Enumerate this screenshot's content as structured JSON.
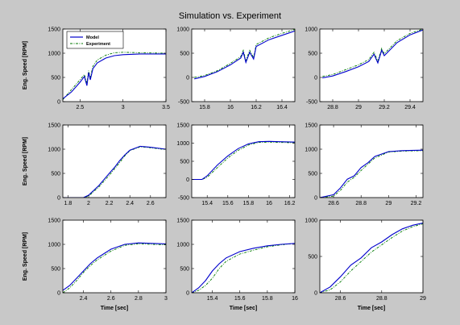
{
  "chart_data": {
    "type": "line",
    "title": "Simulation vs. Experiment",
    "xlabel": "Time [sec]",
    "ylabel": "Eng. Speed [RPM]",
    "legend": {
      "placement": "top-left",
      "entries": [
        "Model",
        "Experiment"
      ]
    },
    "colors": {
      "Model": "#0000cc",
      "Experiment": "#007a00",
      "axes_bg": "#ffffff",
      "figure_bg": "#c8c8c8"
    },
    "grid": false,
    "panels": [
      {
        "xlim": [
          2.3,
          3.5
        ],
        "ylim": [
          0,
          1500
        ],
        "xticks": [
          2.5,
          3,
          3.5
        ],
        "xtick_labels": [
          "2.5",
          "3",
          "3.5"
        ],
        "yticks": [
          0,
          500,
          1000,
          1500
        ],
        "ytick_labels": [
          "0",
          "500",
          "1000",
          "1500"
        ],
        "series": [
          {
            "name": "Model",
            "x": [
              2.3,
              2.4,
              2.5,
              2.55,
              2.58,
              2.6,
              2.62,
              2.65,
              2.7,
              2.8,
              2.9,
              3.0,
              3.2,
              3.5
            ],
            "y": [
              60,
              200,
              400,
              520,
              330,
              600,
              450,
              680,
              800,
              900,
              950,
              970,
              985,
              985
            ]
          },
          {
            "name": "Experiment",
            "x": [
              2.3,
              2.4,
              2.5,
              2.55,
              2.58,
              2.6,
              2.62,
              2.65,
              2.7,
              2.8,
              2.9,
              3.0,
              3.2,
              3.5
            ],
            "y": [
              40,
              250,
              450,
              560,
              380,
              640,
              490,
              730,
              860,
              960,
              1010,
              1020,
              1010,
              1000
            ]
          }
        ]
      },
      {
        "xlim": [
          15.7,
          16.5
        ],
        "ylim": [
          -500,
          1000
        ],
        "xticks": [
          15.8,
          16,
          16.2,
          16.4
        ],
        "xtick_labels": [
          "15.8",
          "16",
          "16.2",
          "16.4"
        ],
        "yticks": [
          -500,
          0,
          500,
          1000
        ],
        "ytick_labels": [
          "-500",
          "0",
          "500",
          "1000"
        ],
        "series": [
          {
            "name": "Model",
            "x": [
              15.72,
              15.8,
              15.9,
              16.0,
              16.08,
              16.1,
              16.12,
              16.15,
              16.18,
              16.2,
              16.3,
              16.4,
              16.5
            ],
            "y": [
              -30,
              20,
              120,
              260,
              400,
              520,
              310,
              520,
              380,
              640,
              780,
              870,
              960
            ]
          },
          {
            "name": "Experiment",
            "x": [
              15.72,
              15.8,
              15.9,
              16.0,
              16.08,
              16.1,
              16.12,
              16.15,
              16.18,
              16.2,
              16.3,
              16.4,
              16.5
            ],
            "y": [
              0,
              40,
              140,
              290,
              430,
              560,
              350,
              560,
              410,
              680,
              820,
              910,
              990
            ]
          }
        ]
      },
      {
        "xlim": [
          28.7,
          29.5
        ],
        "ylim": [
          -500,
          1000
        ],
        "xticks": [
          28.8,
          29,
          29.2,
          29.4
        ],
        "xtick_labels": [
          "28.8",
          "29",
          "29.2",
          "29.4"
        ],
        "yticks": [
          -500,
          0,
          500,
          1000
        ],
        "ytick_labels": [
          "-500",
          "0",
          "500",
          "1000"
        ],
        "series": [
          {
            "name": "Model",
            "x": [
              28.72,
              28.8,
              28.9,
              29.0,
              29.08,
              29.12,
              29.15,
              29.18,
              29.2,
              29.3,
              29.4,
              29.5
            ],
            "y": [
              -10,
              30,
              120,
              220,
              330,
              480,
              300,
              560,
              450,
              720,
              880,
              980
            ]
          },
          {
            "name": "Experiment",
            "x": [
              28.72,
              28.8,
              28.9,
              29.0,
              29.08,
              29.12,
              29.15,
              29.18,
              29.2,
              29.3,
              29.4,
              29.5
            ],
            "y": [
              20,
              60,
              160,
              260,
              370,
              520,
              340,
              600,
              490,
              760,
              910,
              1000
            ]
          }
        ]
      },
      {
        "xlim": [
          1.75,
          2.75
        ],
        "ylim": [
          0,
          1500
        ],
        "xticks": [
          1.8,
          2,
          2.2,
          2.4,
          2.6
        ],
        "xtick_labels": [
          "1.8",
          "2",
          "2.2",
          "2.4",
          "2.6"
        ],
        "yticks": [
          0,
          500,
          1000,
          1500
        ],
        "ytick_labels": [
          "0",
          "500",
          "1000",
          "1500"
        ],
        "series": [
          {
            "name": "Model",
            "x": [
              1.75,
              1.95,
              2.0,
              2.1,
              2.2,
              2.25,
              2.3,
              2.35,
              2.4,
              2.5,
              2.6,
              2.75
            ],
            "y": [
              0,
              0,
              50,
              250,
              500,
              620,
              760,
              880,
              980,
              1060,
              1040,
              1000
            ]
          },
          {
            "name": "Experiment",
            "x": [
              1.75,
              1.95,
              2.0,
              2.1,
              2.2,
              2.25,
              2.3,
              2.35,
              2.4,
              2.5,
              2.6,
              2.75
            ],
            "y": [
              0,
              0,
              30,
              220,
              460,
              590,
              720,
              860,
              970,
              1050,
              1030,
              990
            ]
          }
        ]
      },
      {
        "xlim": [
          15.25,
          16.25
        ],
        "ylim": [
          -500,
          1500
        ],
        "xticks": [
          15.4,
          15.6,
          15.8,
          16,
          16.2
        ],
        "xtick_labels": [
          "15.4",
          "15.6",
          "15.8",
          "16",
          "16.2"
        ],
        "yticks": [
          -500,
          0,
          500,
          1000,
          1500
        ],
        "ytick_labels": [
          "-500",
          "0",
          "500",
          "1000",
          "1500"
        ],
        "series": [
          {
            "name": "Model",
            "x": [
              15.25,
              15.35,
              15.4,
              15.5,
              15.6,
              15.7,
              15.8,
              15.9,
              16.0,
              16.1,
              16.25
            ],
            "y": [
              0,
              0,
              100,
              400,
              650,
              850,
              980,
              1040,
              1050,
              1040,
              1030
            ]
          },
          {
            "name": "Experiment",
            "x": [
              15.25,
              15.35,
              15.4,
              15.5,
              15.6,
              15.7,
              15.8,
              15.9,
              16.0,
              16.1,
              16.25
            ],
            "y": [
              0,
              0,
              60,
              330,
              590,
              800,
              950,
              1020,
              1030,
              1020,
              1010
            ]
          }
        ]
      },
      {
        "xlim": [
          28.5,
          29.25
        ],
        "ylim": [
          0,
          1500
        ],
        "xticks": [
          28.6,
          28.8,
          29,
          29.2
        ],
        "xtick_labels": [
          "28.6",
          "28.8",
          "29",
          "29.2"
        ],
        "yticks": [
          0,
          500,
          1000,
          1500
        ],
        "ytick_labels": [
          "0",
          "500",
          "1000",
          "1500"
        ],
        "series": [
          {
            "name": "Model",
            "x": [
              28.5,
              28.6,
              28.65,
              28.7,
              28.75,
              28.8,
              28.85,
              28.9,
              28.95,
              29.0,
              29.1,
              29.25
            ],
            "y": [
              0,
              60,
              200,
              380,
              450,
              620,
              720,
              850,
              900,
              950,
              970,
              980
            ]
          },
          {
            "name": "Experiment",
            "x": [
              28.5,
              28.6,
              28.65,
              28.7,
              28.75,
              28.8,
              28.85,
              28.9,
              28.95,
              29.0,
              29.1,
              29.25
            ],
            "y": [
              0,
              30,
              150,
              320,
              420,
              560,
              690,
              820,
              880,
              940,
              960,
              970
            ]
          }
        ]
      },
      {
        "xlim": [
          2.25,
          3.0
        ],
        "ylim": [
          0,
          1500
        ],
        "xticks": [
          2.4,
          2.6,
          2.8,
          3
        ],
        "xtick_labels": [
          "2.4",
          "2.6",
          "2.8",
          "3"
        ],
        "yticks": [
          0,
          500,
          1000,
          1500
        ],
        "ytick_labels": [
          "0",
          "500",
          "1000",
          "1500"
        ],
        "series": [
          {
            "name": "Model",
            "x": [
              2.25,
              2.3,
              2.35,
              2.4,
              2.45,
              2.5,
              2.6,
              2.7,
              2.8,
              2.9,
              3.0
            ],
            "y": [
              50,
              150,
              300,
              450,
              600,
              720,
              900,
              1000,
              1030,
              1020,
              1010
            ]
          },
          {
            "name": "Experiment",
            "x": [
              2.25,
              2.3,
              2.35,
              2.4,
              2.45,
              2.5,
              2.6,
              2.7,
              2.8,
              2.9,
              3.0
            ],
            "y": [
              0,
              100,
              250,
              420,
              560,
              680,
              860,
              980,
              1010,
              1000,
              990
            ]
          }
        ]
      },
      {
        "xlim": [
          15.25,
          16.0
        ],
        "ylim": [
          0,
          1500
        ],
        "xticks": [
          15.4,
          15.6,
          15.8,
          16
        ],
        "xtick_labels": [
          "15.4",
          "15.6",
          "15.8",
          "16"
        ],
        "yticks": [
          0,
          500,
          1000,
          1500
        ],
        "ytick_labels": [
          "0",
          "500",
          "1000",
          "1500"
        ],
        "series": [
          {
            "name": "Model",
            "x": [
              15.25,
              15.3,
              15.35,
              15.4,
              15.45,
              15.5,
              15.6,
              15.7,
              15.8,
              15.9,
              16.0
            ],
            "y": [
              0,
              100,
              250,
              450,
              600,
              720,
              850,
              920,
              970,
              1000,
              1020
            ]
          },
          {
            "name": "Experiment",
            "x": [
              15.25,
              15.3,
              15.35,
              15.4,
              15.45,
              15.5,
              15.6,
              15.7,
              15.8,
              15.9,
              16.0
            ],
            "y": [
              0,
              50,
              150,
              300,
              500,
              650,
              800,
              880,
              950,
              990,
              1020
            ]
          }
        ]
      },
      {
        "xlim": [
          28.5,
          29.0
        ],
        "ylim": [
          0,
          1000
        ],
        "xticks": [
          28.6,
          28.8,
          29
        ],
        "xtick_labels": [
          "28.6",
          "28.8",
          "29"
        ],
        "yticks": [
          0,
          500,
          1000
        ],
        "ytick_labels": [
          "0",
          "500",
          "1000"
        ],
        "series": [
          {
            "name": "Model",
            "x": [
              28.5,
              28.55,
              28.6,
              28.65,
              28.7,
              28.75,
              28.8,
              28.85,
              28.9,
              28.95,
              29.0
            ],
            "y": [
              0,
              80,
              220,
              380,
              480,
              620,
              700,
              800,
              880,
              930,
              960
            ]
          },
          {
            "name": "Experiment",
            "x": [
              28.5,
              28.55,
              28.6,
              28.65,
              28.7,
              28.75,
              28.8,
              28.85,
              28.9,
              28.95,
              29.0
            ],
            "y": [
              0,
              40,
              150,
              300,
              430,
              560,
              660,
              760,
              850,
              910,
              950
            ]
          }
        ]
      }
    ]
  }
}
